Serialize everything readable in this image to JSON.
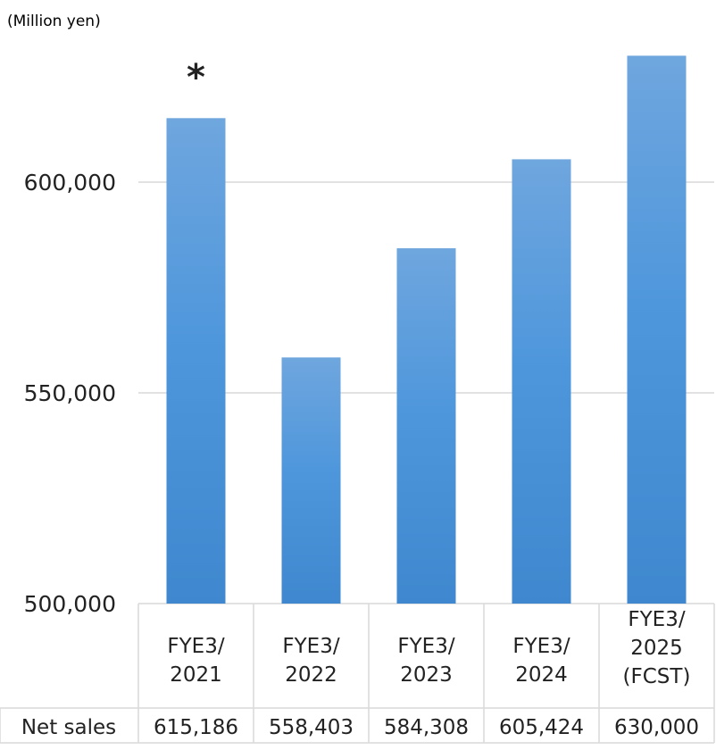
{
  "chart_data": {
    "type": "bar",
    "unit_label": "(Million yen)",
    "categories": [
      [
        "FYE3/",
        "2021"
      ],
      [
        "FYE3/",
        "2022"
      ],
      [
        "FYE3/",
        "2023"
      ],
      [
        "FYE3/",
        "2024"
      ],
      [
        "FYE3/",
        "2025",
        "(FCST)"
      ]
    ],
    "series": [
      {
        "name": "Net sales",
        "values": [
          615186,
          558403,
          584308,
          605424,
          630000
        ]
      }
    ],
    "value_labels": [
      "615,186",
      "558,403",
      "584,308",
      "605,424",
      "630,000"
    ],
    "row_header": "Net sales",
    "annotation": {
      "text": "*",
      "category_index": 0
    },
    "ylim": [
      500000,
      630000
    ],
    "yticks": [
      500000,
      550000,
      600000
    ],
    "ytick_labels": [
      "500,000",
      "550,000",
      "600,000"
    ],
    "grid": true,
    "colors": {
      "bar_top": "#6fa6de",
      "bar_bottom": "#3f88cf",
      "grid": "#d9d9d9"
    }
  }
}
